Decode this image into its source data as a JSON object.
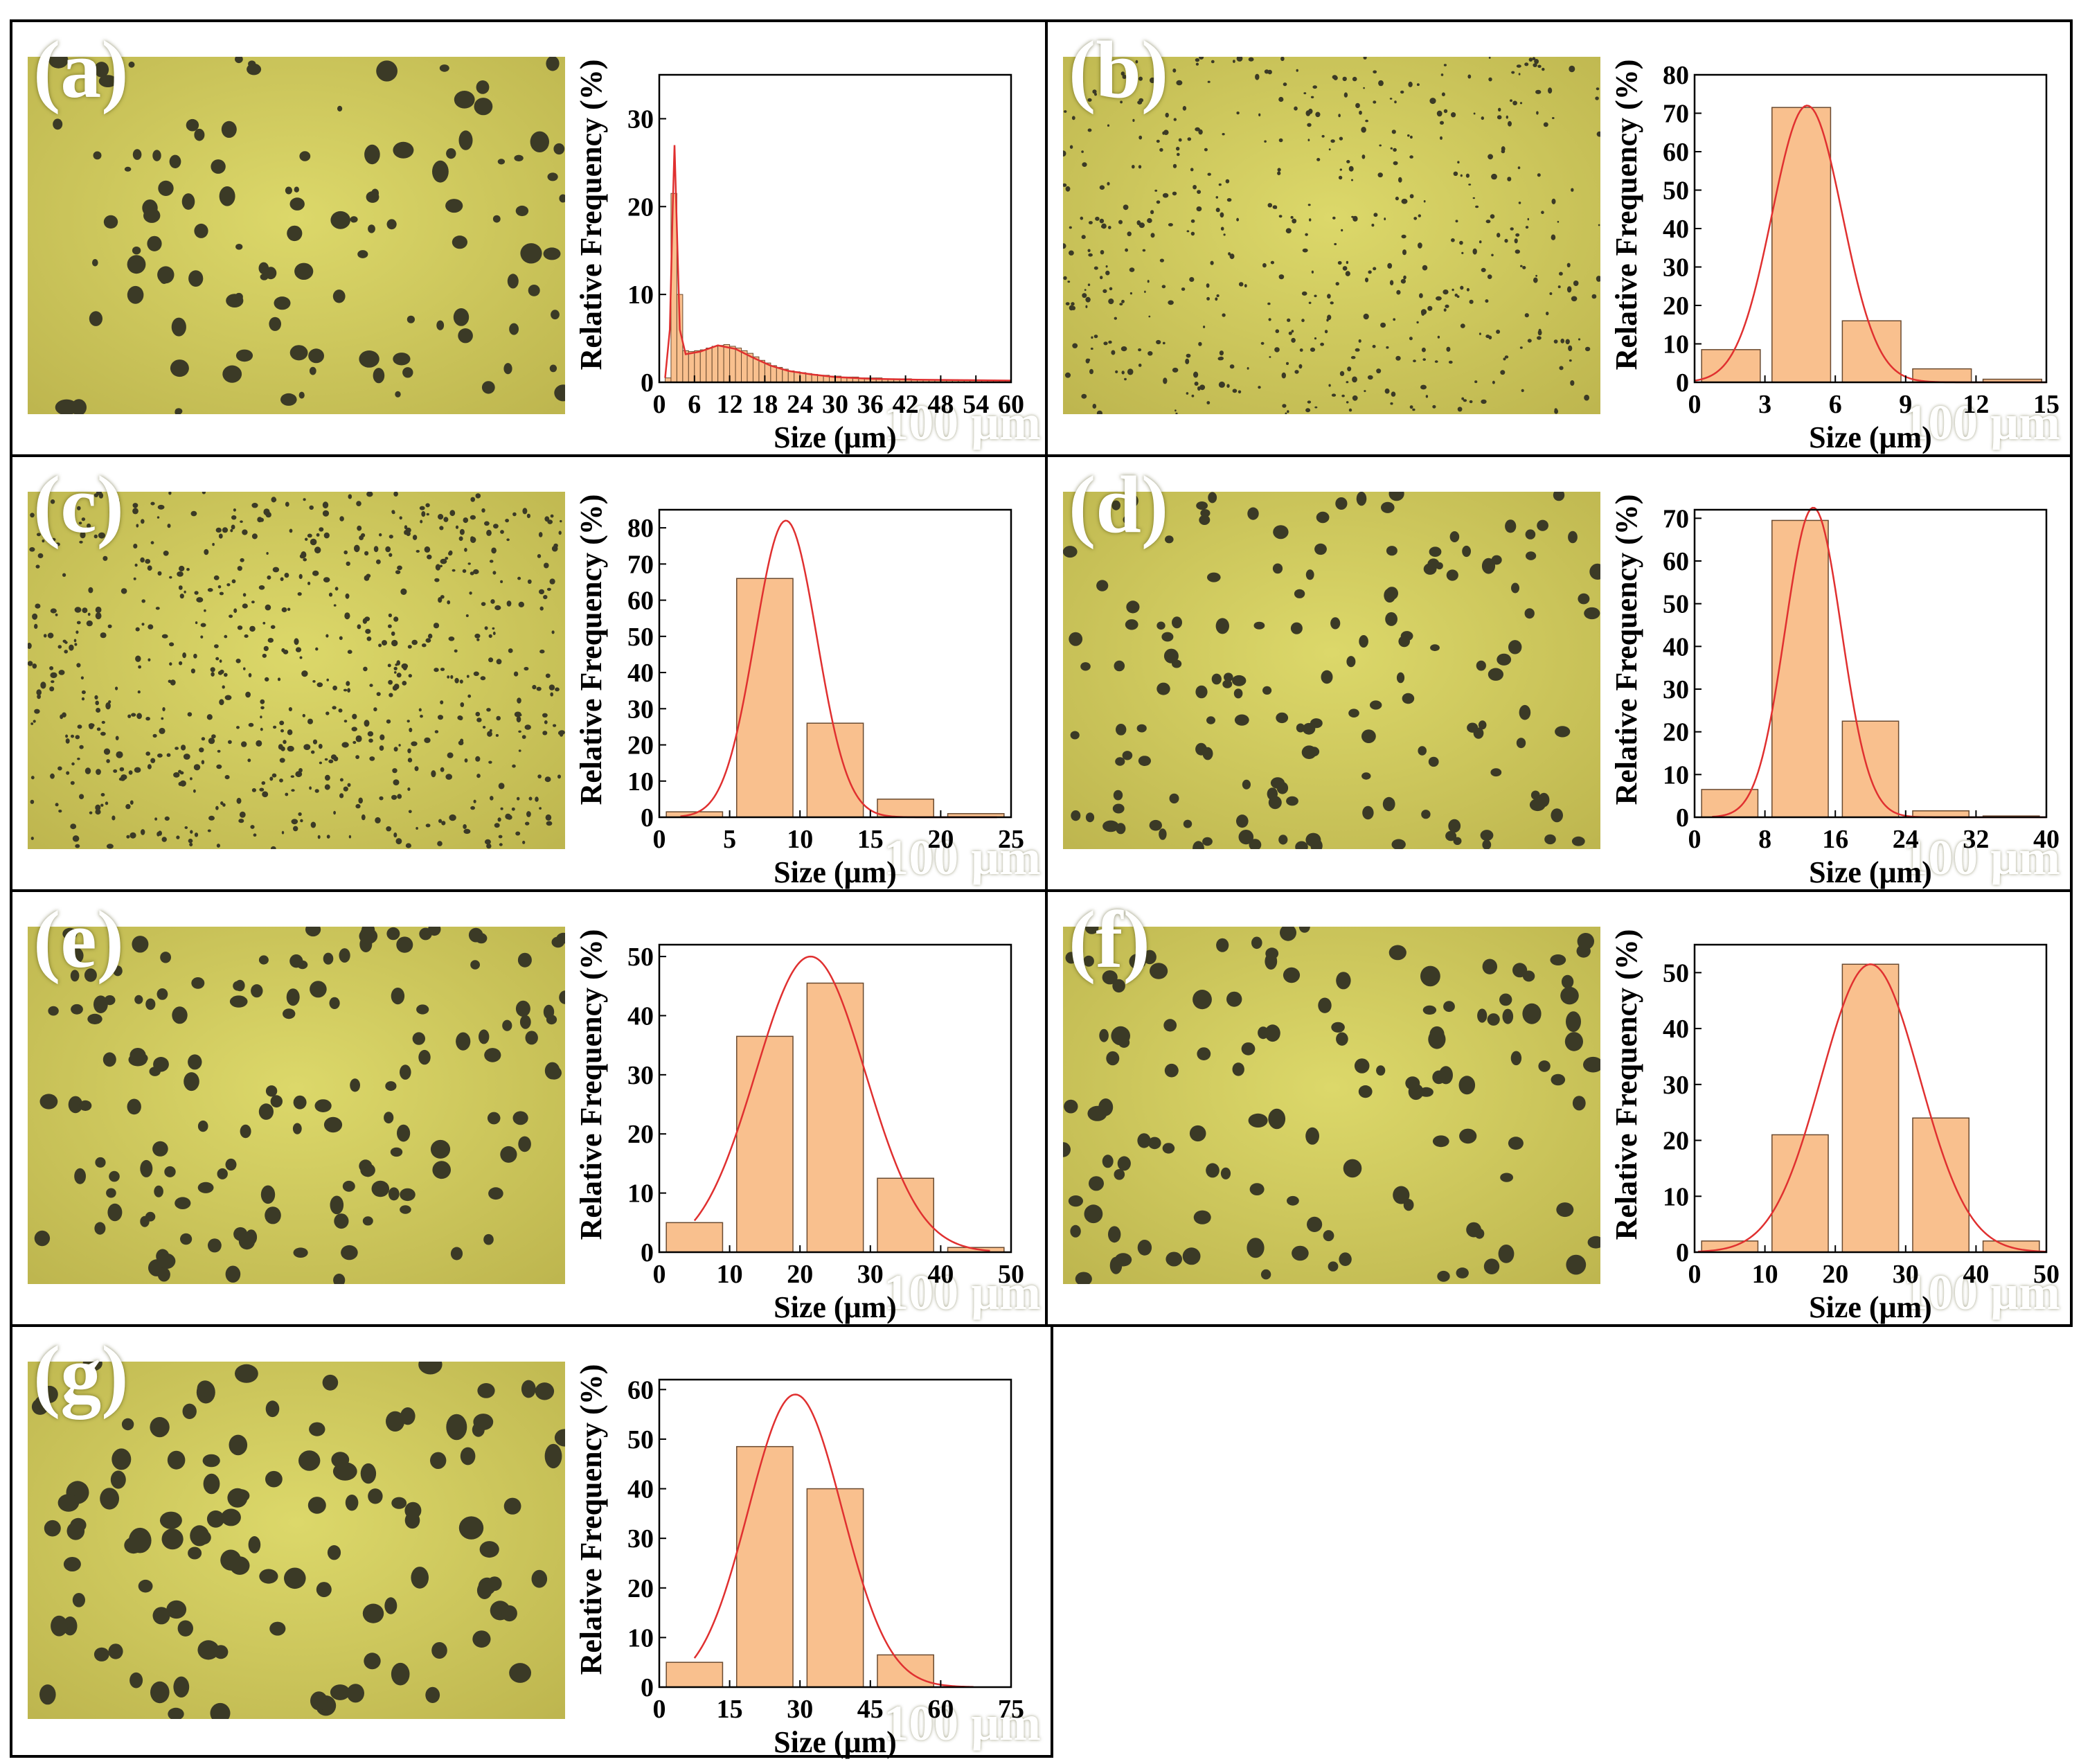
{
  "figure": {
    "scale_bar_label": "100 μm",
    "colors": {
      "bar_fill": "#f9c08e",
      "bar_stroke": "#6a4a30",
      "fit_line": "#e03030",
      "micrograph_bg": "#cdc85c",
      "particle": "#3b3a26"
    }
  },
  "chart_data": [
    {
      "panel": "(a)",
      "type": "bar",
      "title": "",
      "xlabel": "Size (μm)",
      "ylabel": "Relative Frequency (%)",
      "xlim": [
        0,
        60
      ],
      "ylim": [
        0,
        35
      ],
      "bin_width": 1,
      "xticks": [
        0,
        6,
        12,
        18,
        24,
        30,
        36,
        42,
        48,
        54,
        60
      ],
      "yticks": [
        0,
        10,
        20,
        30
      ],
      "bins_start": [
        1,
        2,
        3,
        4,
        5,
        6,
        7,
        8,
        9,
        10,
        11,
        12,
        13,
        14,
        15,
        16,
        17,
        18,
        19,
        20,
        21,
        22,
        23,
        24,
        25,
        26,
        27,
        28,
        29,
        30,
        31,
        32,
        33,
        34,
        35,
        36,
        37,
        38,
        39,
        40,
        41,
        42,
        43,
        44,
        45,
        46,
        47,
        48,
        49,
        50,
        51,
        52,
        53,
        54,
        55,
        56,
        57,
        58,
        59
      ],
      "values": [
        0.5,
        21.5,
        10,
        3.6,
        3.5,
        3.6,
        3.7,
        3.9,
        4.1,
        4.2,
        4.3,
        4.1,
        3.9,
        3.6,
        3.3,
        2.9,
        2.5,
        2.2,
        1.9,
        1.7,
        1.5,
        1.3,
        1.2,
        1.1,
        1.0,
        0.9,
        0.8,
        0.8,
        0.7,
        0.7,
        0.6,
        0.6,
        0.6,
        0.5,
        0.5,
        0.5,
        0.5,
        0.4,
        0.4,
        0.4,
        0.4,
        0.4,
        0.3,
        0.3,
        0.3,
        0.3,
        0.3,
        0.3,
        0.3,
        0.3,
        0.2,
        0.2,
        0.2,
        0.2,
        0.2,
        0.2,
        0.2,
        0.2,
        0.2
      ],
      "fit": [
        [
          1,
          0.5
        ],
        [
          1.8,
          6
        ],
        [
          2.3,
          20
        ],
        [
          2.6,
          27
        ],
        [
          2.9,
          20
        ],
        [
          3.5,
          6
        ],
        [
          4.5,
          3.2
        ],
        [
          7,
          3.5
        ],
        [
          10,
          4.2
        ],
        [
          13,
          3.8
        ],
        [
          16,
          2.8
        ],
        [
          19,
          1.9
        ],
        [
          22,
          1.3
        ],
        [
          26,
          0.9
        ],
        [
          30,
          0.6
        ],
        [
          36,
          0.4
        ],
        [
          44,
          0.3
        ],
        [
          52,
          0.25
        ],
        [
          60,
          0.2
        ]
      ]
    },
    {
      "panel": "(b)",
      "type": "bar",
      "title": "",
      "xlabel": "Size (μm)",
      "ylabel": "Relative Frequency (%)",
      "xlim": [
        0,
        15
      ],
      "ylim": [
        0,
        80
      ],
      "bin_width": 2.5,
      "xticks": [
        0,
        3,
        6,
        9,
        12,
        15
      ],
      "yticks": [
        0,
        10,
        20,
        30,
        40,
        50,
        60,
        70,
        80
      ],
      "bins_start": [
        0.3,
        3.3,
        6.3,
        9.3,
        12.3
      ],
      "values": [
        8.5,
        71.5,
        16,
        3.5,
        0.8
      ],
      "fit": {
        "type": "gauss",
        "mu": 4.8,
        "sigma": 1.5,
        "amp": 72,
        "x_range": [
          0,
          15
        ]
      }
    },
    {
      "panel": "(c)",
      "type": "bar",
      "title": "",
      "xlabel": "Size (μm)",
      "ylabel": "Relative Frequency (%)",
      "xlim": [
        0,
        25
      ],
      "ylim": [
        0,
        85
      ],
      "bin_width": 4,
      "xticks": [
        0,
        5,
        10,
        15,
        20,
        25
      ],
      "yticks": [
        0,
        10,
        20,
        30,
        40,
        50,
        60,
        70,
        80
      ],
      "bins_start": [
        0.5,
        5.5,
        10.5,
        15.5,
        20.5
      ],
      "values": [
        1.5,
        66,
        26,
        5,
        1
      ],
      "fit": {
        "type": "gauss",
        "mu": 9,
        "sigma": 2.2,
        "amp": 82,
        "x_range": [
          1.5,
          24
        ]
      }
    },
    {
      "panel": "(d)",
      "type": "bar",
      "title": "",
      "xlabel": "Size (μm)",
      "ylabel": "Relative Frequency (%)",
      "xlim": [
        0,
        40
      ],
      "ylim": [
        0,
        72
      ],
      "bin_width": 6.4,
      "xticks": [
        0,
        8,
        16,
        24,
        32,
        40
      ],
      "yticks": [
        0,
        10,
        20,
        30,
        40,
        50,
        60,
        70
      ],
      "bins_start": [
        0.8,
        8.8,
        16.8,
        24.8,
        32.8
      ],
      "values": [
        6.5,
        69.5,
        22.5,
        1.5,
        0.3
      ],
      "fit": {
        "type": "gauss",
        "mu": 13.5,
        "sigma": 3.2,
        "amp": 72.5,
        "x_range": [
          2,
          40
        ]
      }
    },
    {
      "panel": "(e)",
      "type": "bar",
      "title": "",
      "xlabel": "Size (μm)",
      "ylabel": "Relative Frequency (%)",
      "xlim": [
        0,
        50
      ],
      "ylim": [
        0,
        52
      ],
      "bin_width": 8,
      "xticks": [
        0,
        10,
        20,
        30,
        40,
        50
      ],
      "yticks": [
        0,
        10,
        20,
        30,
        40,
        50
      ],
      "bins_start": [
        1,
        11,
        21,
        31,
        41
      ],
      "values": [
        5,
        36.5,
        45.5,
        12.5,
        0.8
      ],
      "fit": {
        "type": "gauss",
        "mu": 21.5,
        "sigma": 7.8,
        "amp": 50,
        "x_range": [
          5,
          47
        ]
      }
    },
    {
      "panel": "(f)",
      "type": "bar",
      "title": "",
      "xlabel": "Size (μm)",
      "ylabel": "Relative Frequency (%)",
      "xlim": [
        0,
        50
      ],
      "ylim": [
        0,
        55
      ],
      "bin_width": 8,
      "xticks": [
        0,
        10,
        20,
        30,
        40,
        50
      ],
      "yticks": [
        0,
        10,
        20,
        30,
        40,
        50
      ],
      "bins_start": [
        1,
        11,
        21,
        31,
        41
      ],
      "values": [
        2,
        21,
        51.5,
        24,
        2
      ],
      "fit": {
        "type": "gauss",
        "mu": 25,
        "sigma": 7,
        "amp": 51.5,
        "x_range": [
          0.5,
          50
        ]
      }
    },
    {
      "panel": "(g)",
      "type": "bar",
      "title": "",
      "xlabel": "Size (μm)",
      "ylabel": "Relative Frequency (%)",
      "xlim": [
        0,
        75
      ],
      "ylim": [
        0,
        62
      ],
      "bin_width": 12,
      "xticks": [
        0,
        15,
        30,
        45,
        60,
        75
      ],
      "yticks": [
        0,
        10,
        20,
        30,
        40,
        50,
        60
      ],
      "bins_start": [
        1.5,
        16.5,
        31.5,
        46.5,
        61.5
      ],
      "values": [
        5,
        48.5,
        40,
        6.5,
        0
      ],
      "fit": {
        "type": "gauss",
        "mu": 29,
        "sigma": 10,
        "amp": 59,
        "x_range": [
          7.5,
          67
        ]
      }
    }
  ]
}
